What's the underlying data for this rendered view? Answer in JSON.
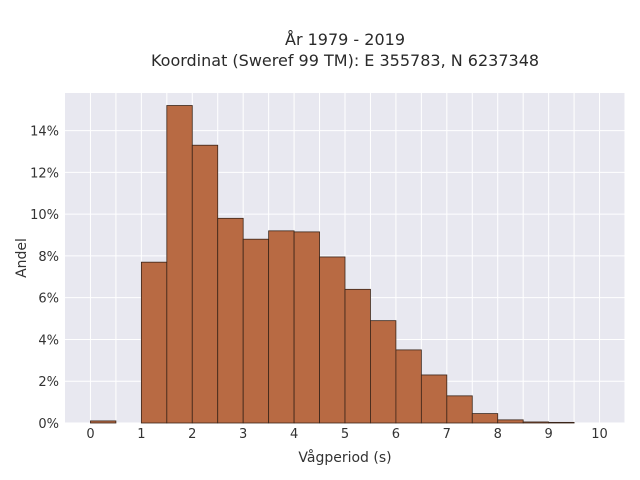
{
  "chart_data": {
    "type": "bar",
    "title_line1": "År 1979 - 2019",
    "title_line2": "Koordinat (Sweref 99 TM): E 355783, N 6237348",
    "xlabel": "Vågperiod (s)",
    "ylabel": "Andel",
    "xlim": [
      -0.5,
      10.5
    ],
    "ylim": [
      0,
      15.8
    ],
    "x_ticks": [
      0,
      1,
      2,
      3,
      4,
      5,
      6,
      7,
      8,
      9,
      10
    ],
    "y_ticks": [
      0,
      2,
      4,
      6,
      8,
      10,
      12,
      14
    ],
    "y_tick_labels": [
      "0%",
      "2%",
      "4%",
      "6%",
      "8%",
      "10%",
      "12%",
      "14%"
    ],
    "bin_width": 0.5,
    "bins": [
      {
        "start": 0.0,
        "value": 0.1
      },
      {
        "start": 0.5,
        "value": 0.0
      },
      {
        "start": 1.0,
        "value": 7.7
      },
      {
        "start": 1.5,
        "value": 15.2
      },
      {
        "start": 2.0,
        "value": 13.3
      },
      {
        "start": 2.5,
        "value": 9.8
      },
      {
        "start": 3.0,
        "value": 8.8
      },
      {
        "start": 3.5,
        "value": 9.2
      },
      {
        "start": 4.0,
        "value": 9.15
      },
      {
        "start": 4.5,
        "value": 7.95
      },
      {
        "start": 5.0,
        "value": 6.4
      },
      {
        "start": 5.5,
        "value": 4.9
      },
      {
        "start": 6.0,
        "value": 3.5
      },
      {
        "start": 6.5,
        "value": 2.3
      },
      {
        "start": 7.0,
        "value": 1.3
      },
      {
        "start": 7.5,
        "value": 0.45
      },
      {
        "start": 8.0,
        "value": 0.15
      },
      {
        "start": 8.5,
        "value": 0.05
      },
      {
        "start": 9.0,
        "value": 0.03
      }
    ],
    "grid": true,
    "legend": false,
    "colors": {
      "bar_fill": "#b86a43",
      "bar_edge": "#3a2418",
      "plot_bg": "#e8e8f0",
      "grid": "#ffffff"
    }
  }
}
